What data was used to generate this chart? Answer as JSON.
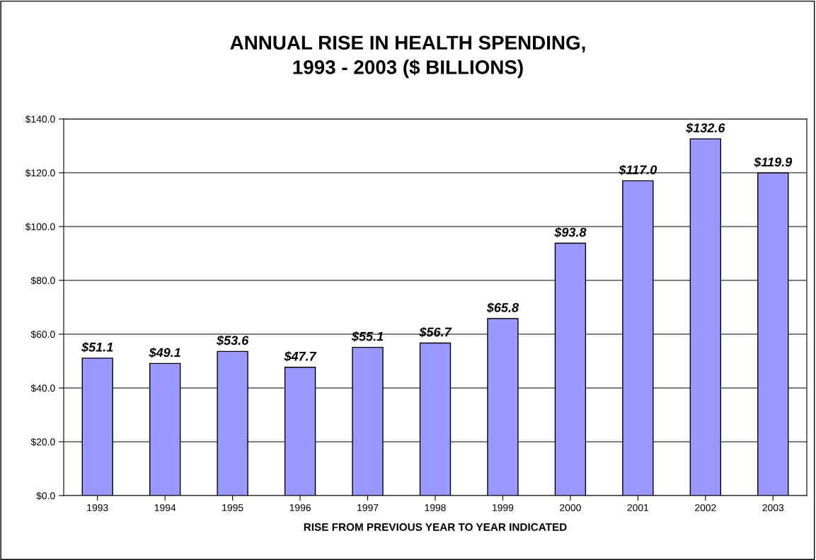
{
  "chart_data": {
    "type": "bar",
    "title": "ANNUAL RISE IN HEALTH SPENDING,\n1993 - 2003 ($ BILLIONS)",
    "xlabel": "RISE FROM PREVIOUS YEAR TO YEAR INDICATED",
    "categories": [
      "1993",
      "1994",
      "1995",
      "1996",
      "1997",
      "1998",
      "1999",
      "2000",
      "2001",
      "2002",
      "2003"
    ],
    "values": [
      51.1,
      49.1,
      53.6,
      47.7,
      55.1,
      56.7,
      65.8,
      93.8,
      117.0,
      132.6,
      119.9
    ],
    "value_labels": [
      "$51.1",
      "$49.1",
      "$53.6",
      "$47.7",
      "$55.1",
      "$56.7",
      "$65.8",
      "$93.8",
      "$117.0",
      "$132.6",
      "$119.9"
    ],
    "color": "#9999ff",
    "ylim": [
      0,
      140
    ],
    "yticks": [
      {
        "value": 0,
        "label": "$0.0"
      },
      {
        "value": 20,
        "label": "$20.0"
      },
      {
        "value": 40,
        "label": "$40.0"
      },
      {
        "value": 60,
        "label": "$60.0"
      },
      {
        "value": 80,
        "label": "$80.0"
      },
      {
        "value": 100,
        "label": "$100.0"
      },
      {
        "value": 120,
        "label": "$120.0"
      },
      {
        "value": 140,
        "label": "$140.0"
      }
    ],
    "grid": "y",
    "legend": false
  }
}
